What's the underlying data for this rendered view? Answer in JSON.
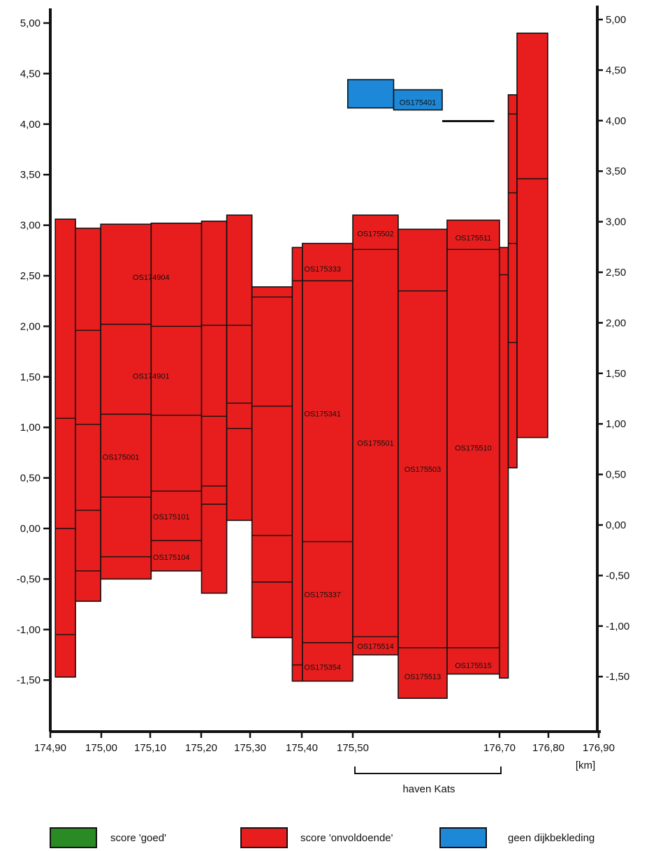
{
  "chart_data": {
    "type": "bar",
    "xaxis": {
      "unit": "[km]",
      "range": [
        174.9,
        176.9
      ],
      "ticks": [
        {
          "value": 174.9,
          "label": "174,90"
        },
        {
          "value": 175.0,
          "label": "175,00"
        },
        {
          "value": 175.1,
          "label": "175,10"
        },
        {
          "value": 175.2,
          "label": "175,20"
        },
        {
          "value": 175.3,
          "label": "175,30"
        },
        {
          "value": 175.4,
          "label": "175,40"
        },
        {
          "value": 175.5,
          "label": "175,50"
        },
        {
          "value": 176.7,
          "label": "176,70"
        },
        {
          "value": 176.8,
          "label": "176,80"
        },
        {
          "value": 176.9,
          "label": "176,90"
        }
      ]
    },
    "yaxis": {
      "range": [
        -1.95,
        5.1
      ],
      "ticks": [
        {
          "value": 5.0,
          "label": "5,00"
        },
        {
          "value": 4.5,
          "label": "4,50"
        },
        {
          "value": 4.0,
          "label": "4,00"
        },
        {
          "value": 3.5,
          "label": "3,50"
        },
        {
          "value": 3.0,
          "label": "3,00"
        },
        {
          "value": 2.5,
          "label": "2,50"
        },
        {
          "value": 2.0,
          "label": "2,00"
        },
        {
          "value": 1.5,
          "label": "1,50"
        },
        {
          "value": 1.0,
          "label": "1,00"
        },
        {
          "value": 0.5,
          "label": "0,50"
        },
        {
          "value": 0.0,
          "label": "0,00"
        },
        {
          "value": -0.5,
          "label": "-0,50"
        },
        {
          "value": -1.0,
          "label": "-1,00"
        },
        {
          "value": -1.5,
          "label": "-1,50"
        }
      ]
    },
    "blocks": [
      {
        "x0": 174.91,
        "x1": 174.95,
        "y0": -1.47,
        "y1": 3.06,
        "score": "onvoldoende"
      },
      {
        "x0": 174.95,
        "x1": 175.0,
        "y0": -0.72,
        "y1": 2.97,
        "score": "onvoldoende"
      },
      {
        "x0": 175.0,
        "x1": 175.1,
        "y0": -0.5,
        "y1": 3.01,
        "score": "onvoldoende"
      },
      {
        "x0": 175.1,
        "x1": 175.2,
        "y0": -0.42,
        "y1": 3.02,
        "score": "onvoldoende"
      },
      {
        "x0": 175.2,
        "x1": 175.25,
        "y0": -0.64,
        "y1": 3.04,
        "score": "onvoldoende"
      },
      {
        "x0": 175.25,
        "x1": 175.3,
        "y0": 0.08,
        "y1": 3.1,
        "score": "onvoldoende"
      },
      {
        "x0": 175.3,
        "x1": 175.38,
        "y0": -1.08,
        "y1": 2.39,
        "score": "onvoldoende"
      },
      {
        "x0": 175.38,
        "x1": 175.4,
        "y0": -1.51,
        "y1": 2.78,
        "score": "onvoldoende"
      },
      {
        "x0": 175.4,
        "x1": 175.5,
        "y0": -1.51,
        "y1": 2.82,
        "score": "onvoldoende"
      },
      {
        "x0": 175.5,
        "x1": 175.6,
        "y0": -1.25,
        "y1": 3.1,
        "score": "onvoldoende"
      },
      {
        "x0": 175.6,
        "x1": 175.7,
        "y0": -1.68,
        "y1": 2.96,
        "score": "onvoldoende"
      },
      {
        "x0": 175.7,
        "x1": 175.8,
        "y0": -1.44,
        "y1": 3.05,
        "score": "onvoldoende"
      },
      {
        "x0": 175.8,
        "x1": 175.82,
        "y0": -1.48,
        "y1": 2.78,
        "score": "onvoldoende"
      },
      {
        "x0": 175.82,
        "x1": 175.84,
        "y0": 0.6,
        "y1": 4.29,
        "score": "onvoldoende"
      },
      {
        "x0": 175.84,
        "x1": 175.91,
        "y0": 0.9,
        "y1": 4.9,
        "score": "onvoldoende"
      },
      {
        "x0": 175.49,
        "x1": 175.59,
        "y0": 4.16,
        "y1": 4.44,
        "score": "geen dijkbekleding"
      },
      {
        "x0": 175.59,
        "x1": 175.69,
        "y0": 4.14,
        "y1": 4.34,
        "score": "geen dijkbekleding"
      }
    ],
    "block_labels": [
      {
        "text": "OS174904",
        "x": 175.1,
        "y": 2.48
      },
      {
        "text": "OS174901",
        "x": 175.1,
        "y": 1.5
      },
      {
        "text": "OS175001",
        "x": 175.04,
        "y": 0.7
      },
      {
        "text": "OS175101",
        "x": 175.14,
        "y": 0.11
      },
      {
        "text": "OS175104",
        "x": 175.14,
        "y": -0.29
      },
      {
        "text": "OS175333",
        "x": 175.44,
        "y": 2.56
      },
      {
        "text": "OS175341",
        "x": 175.44,
        "y": 1.13
      },
      {
        "text": "OS175337",
        "x": 175.44,
        "y": -0.66
      },
      {
        "text": "OS175354",
        "x": 175.44,
        "y": -1.38
      },
      {
        "text": "OS175502",
        "x": 175.55,
        "y": 2.91
      },
      {
        "text": "OS175501",
        "x": 175.55,
        "y": 0.84
      },
      {
        "text": "OS175514",
        "x": 175.55,
        "y": -1.17
      },
      {
        "text": "OS175503",
        "x": 175.65,
        "y": 0.58
      },
      {
        "text": "OS175513",
        "x": 175.65,
        "y": -1.47
      },
      {
        "text": "OS175511",
        "x": 175.75,
        "y": 2.87
      },
      {
        "text": "OS175510",
        "x": 175.75,
        "y": 0.79
      },
      {
        "text": "OS175515",
        "x": 175.75,
        "y": -1.36
      },
      {
        "text": "OS175401",
        "x": 175.64,
        "y": 4.21
      }
    ],
    "annotation": {
      "text": "haven Kats"
    },
    "legend": [
      {
        "label": "score 'goed'",
        "color": "#2a8a24"
      },
      {
        "label": "score 'onvoldoende'",
        "color": "#e81e1e"
      },
      {
        "label": "geen dijkbekleding",
        "color": "#1e88d8"
      }
    ]
  }
}
